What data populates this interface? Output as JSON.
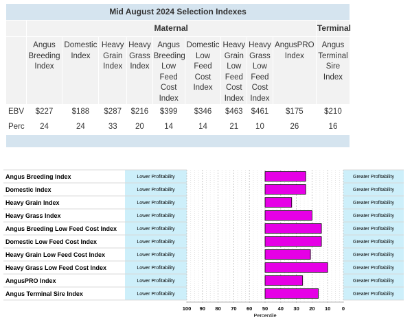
{
  "table": {
    "title": "Mid August 2024 Selection Indexes",
    "group_maternal": "Maternal",
    "group_terminal": "Terminal",
    "headers": [
      [
        "Angus",
        "Breeding",
        "Index"
      ],
      [
        "Domestic",
        "Index"
      ],
      [
        "Heavy",
        "Grain",
        "Index"
      ],
      [
        "Heavy",
        "Grass",
        "Index"
      ],
      [
        "Angus",
        "Breeding",
        "Low",
        "Feed",
        "Cost",
        "Index"
      ],
      [
        "Domestic",
        "Low",
        "Feed",
        "Cost",
        "Index"
      ],
      [
        "Heavy",
        "Grain",
        "Low",
        "Feed",
        "Cost",
        "Index"
      ],
      [
        "Heavy",
        "Grass",
        "Low",
        "Feed",
        "Cost",
        "Index"
      ],
      [
        "AngusPRO",
        "Index"
      ],
      [
        "Angus",
        "Terminal",
        "Sire",
        "Index"
      ]
    ],
    "rows": [
      {
        "label": "EBV",
        "values": [
          "$227",
          "$188",
          "$287",
          "$216",
          "$399",
          "$346",
          "$463",
          "$461",
          "$175",
          "$210"
        ]
      },
      {
        "label": "Perc",
        "values": [
          "24",
          "24",
          "33",
          "20",
          "14",
          "14",
          "21",
          "10",
          "26",
          "16"
        ]
      }
    ]
  },
  "chart_data": {
    "type": "bar",
    "orientation": "horizontal",
    "categories": [
      "Angus Breeding Index",
      "Domestic Index",
      "Heavy Grain Index",
      "Heavy Grass Index",
      "Angus Breeding Low Feed Cost Index",
      "Domestic Low Feed Cost Index",
      "Heavy Grain Low Feed Cost Index",
      "Heavy Grass Low Feed Cost Index",
      "AngusPRO Index",
      "Angus Terminal Sire Index"
    ],
    "bar_start": 50,
    "values": [
      24,
      24,
      33,
      20,
      14,
      14,
      21,
      10,
      26,
      16
    ],
    "left_label": "Lower Profitability",
    "right_label": "Greater Profitability",
    "xlabel": "Percentile",
    "xlim": [
      100,
      0
    ],
    "xticks": [
      "100",
      "90",
      "80",
      "70",
      "60",
      "50",
      "40",
      "30",
      "20",
      "10",
      "0"
    ],
    "grid": true,
    "colors": {
      "bar": "#e600e6",
      "bar_outline": "#000000",
      "side_fill": "#cdeffa"
    }
  }
}
